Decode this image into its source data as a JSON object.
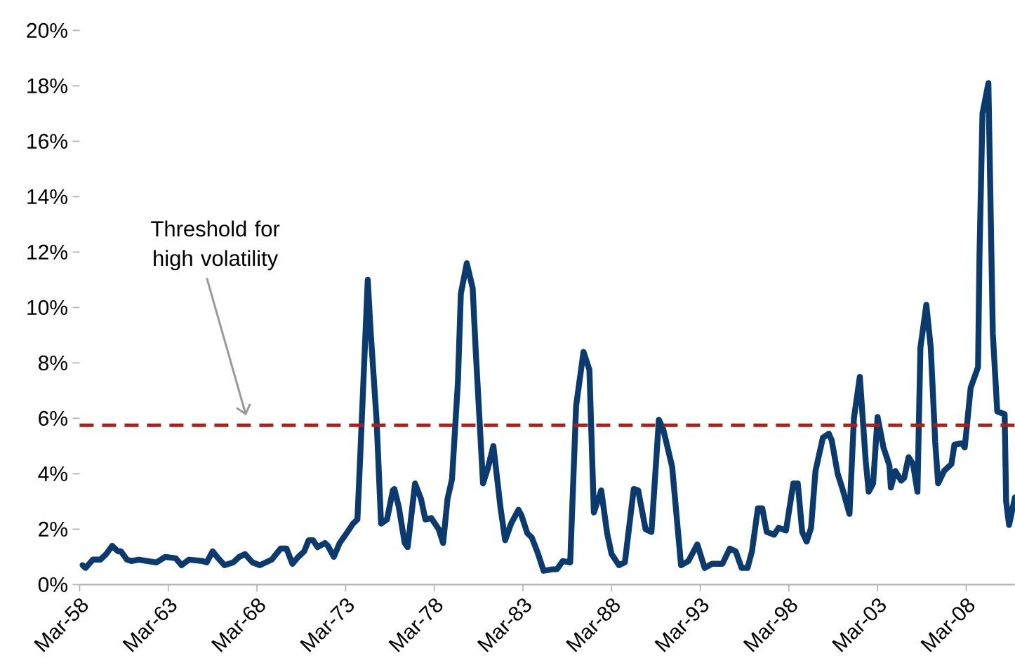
{
  "chart_data": {
    "type": "line",
    "x": [
      "1958-05",
      "1958-07",
      "1958-12",
      "1959-05",
      "1959-09",
      "1960-01",
      "1960-05",
      "1960-07",
      "1960-11",
      "1961-02",
      "1961-07",
      "1962-01",
      "1962-07",
      "1963-01",
      "1963-08",
      "1963-12",
      "1964-05",
      "1965-02",
      "1965-05",
      "1965-09",
      "1965-12",
      "1966-05",
      "1966-11",
      "1967-03",
      "1967-07",
      "1967-12",
      "1968-05",
      "1969-01",
      "1969-07",
      "1969-11",
      "1970-03",
      "1970-07",
      "1970-11",
      "1971-02",
      "1971-05",
      "1971-08",
      "1972-01",
      "1972-03",
      "1972-07",
      "1972-11",
      "1973-03",
      "1973-08",
      "1973-11",
      "1974-01",
      "1974-06",
      "1974-08",
      "1974-12",
      "1975-03",
      "1975-07",
      "1975-11",
      "1975-12",
      "1976-03",
      "1976-07",
      "1976-09",
      "1977-02",
      "1977-06",
      "1977-09",
      "1978-01",
      "1978-06",
      "1978-09",
      "1978-12",
      "1979-03",
      "1979-07",
      "1979-09",
      "1980-01",
      "1980-05",
      "1980-07",
      "1980-12",
      "1981-03",
      "1981-07",
      "1981-12",
      "1982-03",
      "1982-07",
      "1982-12",
      "1983-02",
      "1983-06",
      "1983-09",
      "1984-01",
      "1984-05",
      "1984-11",
      "1985-02",
      "1985-06",
      "1985-11",
      "1986-03",
      "1986-08",
      "1986-12",
      "1987-03",
      "1987-08",
      "1987-12",
      "1988-03",
      "1988-08",
      "1988-12",
      "1989-06",
      "1989-09",
      "1990-02",
      "1990-06",
      "1990-11",
      "1991-02",
      "1991-08",
      "1992-02",
      "1992-07",
      "1993-01",
      "1993-06",
      "1993-11",
      "1994-06",
      "1994-11",
      "1995-03",
      "1995-07",
      "1995-11",
      "1996-02",
      "1996-06",
      "1996-09",
      "1996-12",
      "1997-05",
      "1997-08",
      "1998-01",
      "1998-06",
      "1998-09",
      "1998-12",
      "1999-03",
      "1999-06",
      "1999-09",
      "2000-02",
      "2000-06",
      "2000-08",
      "2000-12",
      "2001-03",
      "2001-08",
      "2001-11",
      "2002-03",
      "2002-07",
      "2002-09",
      "2002-12",
      "2003-03",
      "2003-07",
      "2003-11",
      "2003-12",
      "2004-03",
      "2004-07",
      "2004-09",
      "2004-12",
      "2005-03",
      "2005-06",
      "2005-08",
      "2005-12",
      "2006-03",
      "2006-06",
      "2006-08",
      "2006-12",
      "2007-05",
      "2007-07",
      "2007-12",
      "2008-02",
      "2008-06",
      "2008-11",
      "2008-12",
      "2009-02",
      "2009-06",
      "2009-09",
      "2009-12",
      "2010-05",
      "2010-06",
      "2010-08",
      "2010-12"
    ],
    "series": [
      {
        "color": "#0b3a6e",
        "line_style": "solid",
        "values": [
          0.7,
          0.6,
          0.9,
          0.9,
          1.1,
          1.4,
          1.2,
          1.2,
          0.9,
          0.85,
          0.9,
          0.85,
          0.8,
          1.0,
          0.95,
          0.7,
          0.9,
          0.85,
          0.8,
          1.2,
          1.0,
          0.7,
          0.8,
          1.0,
          1.1,
          0.8,
          0.7,
          0.9,
          1.3,
          1.3,
          0.75,
          1.0,
          1.2,
          1.6,
          1.6,
          1.35,
          1.5,
          1.4,
          1.0,
          1.5,
          1.8,
          2.2,
          2.35,
          4.75,
          11.0,
          9.1,
          5.9,
          2.2,
          2.35,
          3.4,
          3.45,
          2.8,
          1.5,
          1.35,
          3.65,
          3.1,
          2.35,
          2.4,
          2.0,
          1.5,
          3.1,
          3.8,
          7.3,
          10.5,
          11.6,
          10.7,
          8.5,
          3.65,
          4.15,
          5.0,
          2.7,
          1.6,
          2.2,
          2.7,
          2.5,
          1.85,
          1.7,
          1.15,
          0.5,
          0.55,
          0.55,
          0.85,
          0.8,
          6.45,
          8.4,
          7.75,
          2.6,
          3.4,
          1.85,
          1.1,
          0.7,
          0.8,
          3.45,
          3.4,
          2.0,
          1.9,
          5.95,
          5.6,
          4.25,
          0.7,
          0.85,
          1.45,
          0.6,
          0.75,
          0.75,
          1.3,
          1.2,
          0.6,
          0.6,
          1.2,
          2.75,
          2.75,
          1.9,
          1.8,
          2.05,
          1.95,
          3.65,
          3.65,
          1.9,
          1.55,
          2.05,
          4.1,
          5.3,
          5.45,
          5.2,
          4.0,
          3.5,
          2.55,
          6.0,
          7.5,
          4.45,
          3.35,
          3.65,
          6.05,
          4.95,
          4.3,
          3.5,
          4.1,
          3.75,
          3.85,
          4.6,
          4.35,
          3.35,
          8.55,
          10.1,
          8.55,
          5.15,
          3.65,
          4.1,
          4.35,
          5.05,
          5.1,
          4.95,
          7.1,
          7.85,
          11.95,
          17.0,
          18.1,
          9.05,
          6.25,
          6.15,
          3.0,
          2.15,
          3.15
        ]
      }
    ],
    "ref_lines": [
      {
        "axis": "y",
        "value": 5.75,
        "color": "#a8201a",
        "line_style": "dashed"
      }
    ],
    "annotations": [
      "Threshold for high volatility"
    ],
    "xlim": [
      "1958-03",
      "2010-12"
    ],
    "xticks": [
      {
        "value": "1958-03",
        "label": "Mar-58"
      },
      {
        "value": "1963-03",
        "label": "Mar-63"
      },
      {
        "value": "1968-03",
        "label": "Mar-68"
      },
      {
        "value": "1973-03",
        "label": "Mar-73"
      },
      {
        "value": "1978-03",
        "label": "Mar-78"
      },
      {
        "value": "1983-03",
        "label": "Mar-83"
      },
      {
        "value": "1988-03",
        "label": "Mar-88"
      },
      {
        "value": "1993-03",
        "label": "Mar-93"
      },
      {
        "value": "1998-03",
        "label": "Mar-98"
      },
      {
        "value": "2003-03",
        "label": "Mar-03"
      },
      {
        "value": "2008-03",
        "label": "Mar-08"
      }
    ],
    "ylim": [
      0,
      20
    ],
    "yticks": [
      {
        "value": 0,
        "label": "0%"
      },
      {
        "value": 2,
        "label": "2%"
      },
      {
        "value": 4,
        "label": "4%"
      },
      {
        "value": 6,
        "label": "6%"
      },
      {
        "value": 8,
        "label": "8%"
      },
      {
        "value": 10,
        "label": "10%"
      },
      {
        "value": 12,
        "label": "12%"
      },
      {
        "value": 14,
        "label": "14%"
      },
      {
        "value": 16,
        "label": "16%"
      },
      {
        "value": 18,
        "label": "18%"
      },
      {
        "value": 20,
        "label": "20%"
      }
    ]
  }
}
